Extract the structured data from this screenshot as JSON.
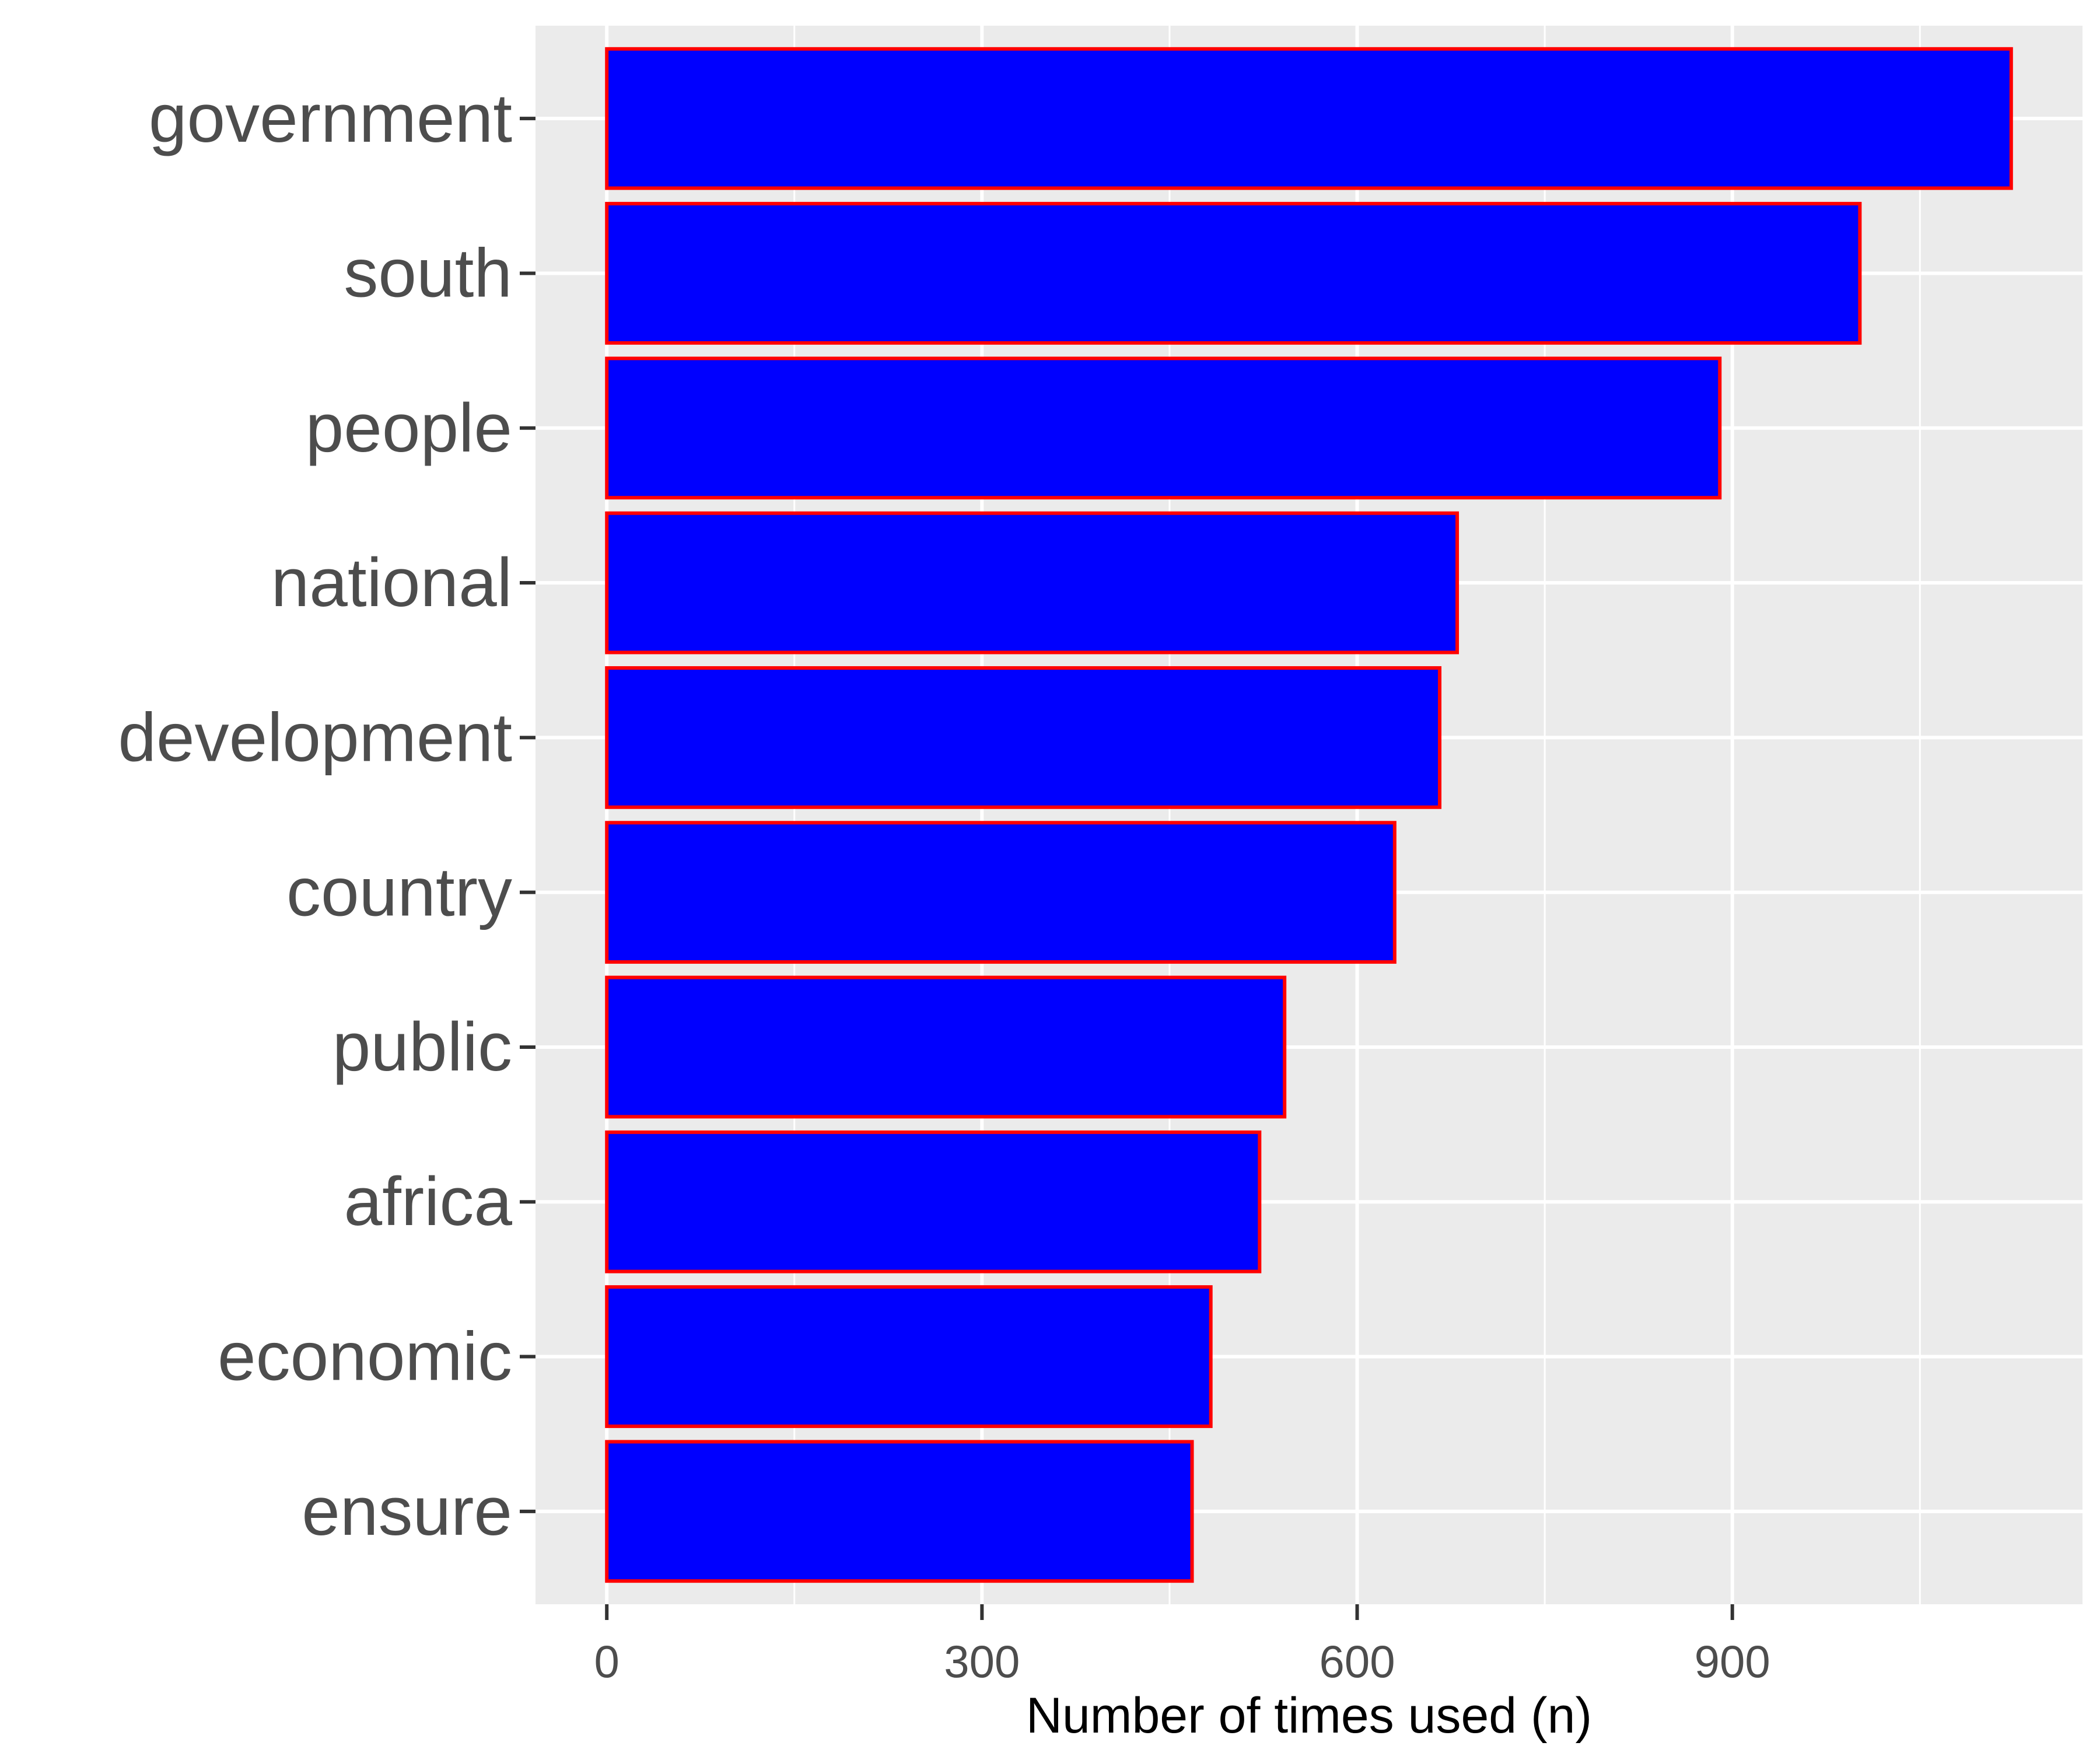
{
  "chart_data": {
    "type": "bar",
    "orientation": "horizontal",
    "title": "",
    "xlabel": "Number of times used (n)",
    "ylabel": "",
    "categories": [
      "government",
      "south",
      "people",
      "national",
      "development",
      "country",
      "public",
      "africa",
      "economic",
      "ensure"
    ],
    "values": [
      1123,
      1002,
      890,
      680,
      666,
      630,
      542,
      522,
      483,
      468
    ],
    "xlim": [
      -57,
      1180
    ],
    "x_ticks": [
      0,
      300,
      600,
      900
    ],
    "x_minor_ticks": [
      150,
      450,
      750,
      1050
    ],
    "x_tick_labels": [
      "0",
      "300",
      "600",
      "900"
    ],
    "grid": true,
    "legend": "none",
    "colors": {
      "panel_background": "#ebebeb",
      "grid": "#ffffff",
      "bar_fill": "#0000ff",
      "bar_outline": "#ff0000",
      "tick_label": "#4d4d4d",
      "axis_title": "#000000"
    }
  }
}
